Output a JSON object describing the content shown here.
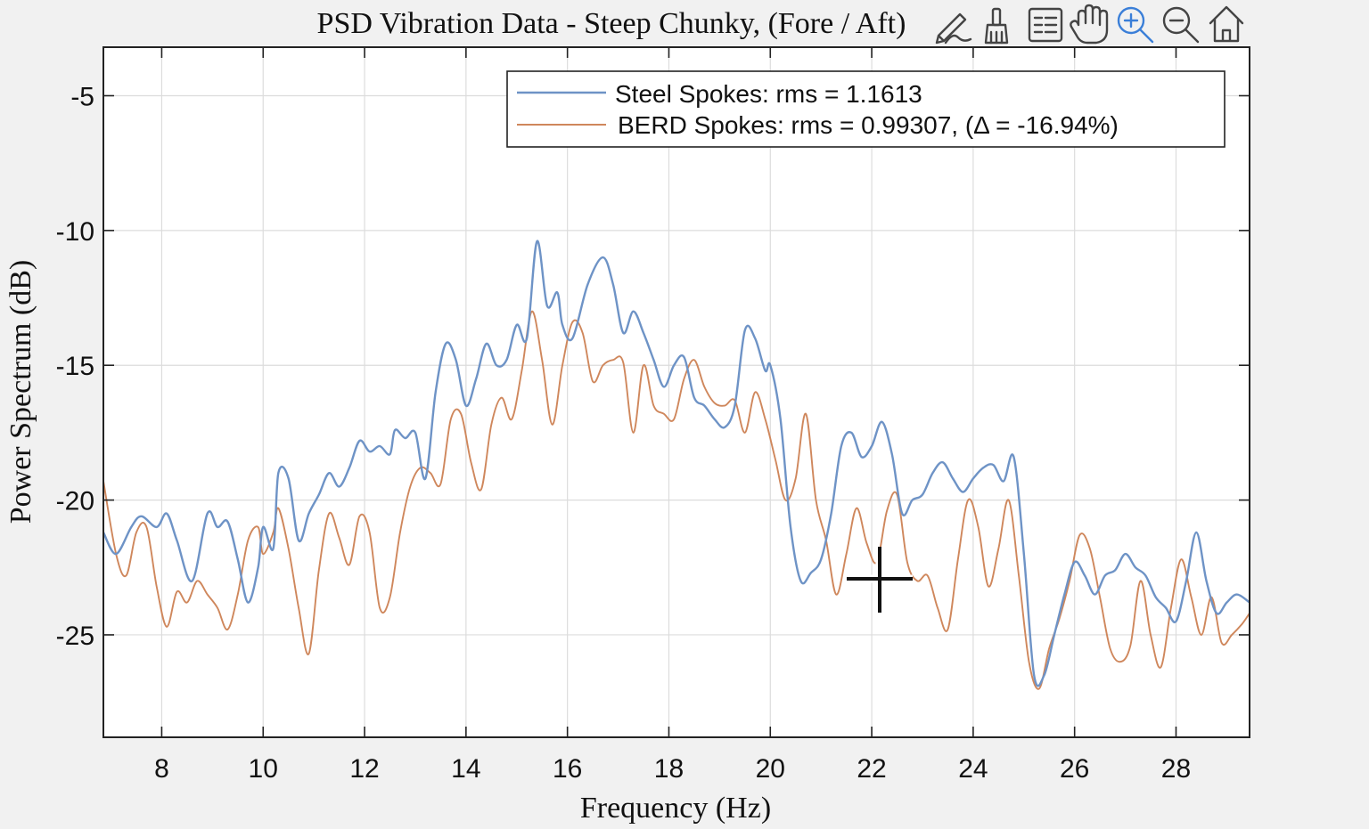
{
  "toolbar": {
    "icons": [
      {
        "name": "edit-plot-icon",
        "active": false
      },
      {
        "name": "brush-icon",
        "active": false
      },
      {
        "name": "legend-icon",
        "active": false
      },
      {
        "name": "pan-hand-icon",
        "active": false
      },
      {
        "name": "zoom-in-icon",
        "active": true
      },
      {
        "name": "zoom-out-icon",
        "active": false
      },
      {
        "name": "home-icon",
        "active": false
      }
    ],
    "active_color": "#3b7fd8"
  },
  "chart_data": {
    "type": "line",
    "title": "PSD Vibration Data - Steep Chunky, (Fore / Aft)",
    "xlabel": "Frequency (Hz)",
    "ylabel": "Power Spectrum (dB)",
    "xlim": [
      6.85,
      29.45
    ],
    "ylim": [
      -28.8,
      -3.2
    ],
    "xticks": [
      8,
      10,
      12,
      14,
      16,
      18,
      20,
      22,
      24,
      26,
      28
    ],
    "yticks": [
      -5,
      -10,
      -15,
      -20,
      -25
    ],
    "grid": true,
    "legend_position": "top-right",
    "series": [
      {
        "name": "Steel Spokes:  rms = 1.1613",
        "color": "#6e93c6",
        "x": [
          6.85,
          7.1,
          7.4,
          7.6,
          7.9,
          8.1,
          8.3,
          8.6,
          8.9,
          9.1,
          9.3,
          9.5,
          9.7,
          9.9,
          10.0,
          10.2,
          10.3,
          10.5,
          10.7,
          10.9,
          11.1,
          11.3,
          11.5,
          11.7,
          11.9,
          12.1,
          12.3,
          12.5,
          12.6,
          12.8,
          13.0,
          13.2,
          13.4,
          13.6,
          13.8,
          14.0,
          14.2,
          14.4,
          14.6,
          14.8,
          15.0,
          15.2,
          15.4,
          15.6,
          15.8,
          15.9,
          16.1,
          16.4,
          16.7,
          16.9,
          17.1,
          17.3,
          17.5,
          17.7,
          17.9,
          18.1,
          18.3,
          18.5,
          18.7,
          18.9,
          19.1,
          19.3,
          19.5,
          19.7,
          19.9,
          20.0,
          20.2,
          20.4,
          20.6,
          20.8,
          21.0,
          21.2,
          21.4,
          21.6,
          21.8,
          22.0,
          22.2,
          22.4,
          22.6,
          22.8,
          23.0,
          23.2,
          23.4,
          23.6,
          23.8,
          24.0,
          24.2,
          24.4,
          24.6,
          24.8,
          25.0,
          25.2,
          25.4,
          25.6,
          25.8,
          26.0,
          26.2,
          26.4,
          26.6,
          26.8,
          27.0,
          27.2,
          27.4,
          27.6,
          27.8,
          28.0,
          28.2,
          28.4,
          28.6,
          28.8,
          29.0,
          29.2,
          29.45
        ],
        "y": [
          -21.2,
          -22.0,
          -21.0,
          -20.6,
          -21.0,
          -20.5,
          -21.5,
          -23.0,
          -20.5,
          -21.0,
          -20.8,
          -22.2,
          -23.8,
          -22.5,
          -21.0,
          -21.8,
          -19.0,
          -19.2,
          -21.5,
          -20.5,
          -19.8,
          -19.0,
          -19.5,
          -18.8,
          -17.8,
          -18.2,
          -18.0,
          -18.3,
          -17.4,
          -17.7,
          -17.5,
          -19.2,
          -16.0,
          -14.2,
          -14.8,
          -16.5,
          -15.5,
          -14.2,
          -15.0,
          -14.8,
          -13.5,
          -14.0,
          -10.4,
          -12.8,
          -12.3,
          -13.5,
          -14.0,
          -12.0,
          -11.0,
          -12.0,
          -13.8,
          -13.0,
          -13.8,
          -14.8,
          -15.8,
          -15.0,
          -14.7,
          -16.2,
          -16.5,
          -17.0,
          -17.3,
          -16.5,
          -13.7,
          -14.0,
          -15.2,
          -15.0,
          -17.0,
          -21.0,
          -23.0,
          -22.7,
          -22.2,
          -20.5,
          -18.0,
          -17.5,
          -18.4,
          -18.0,
          -17.1,
          -18.3,
          -20.5,
          -20.0,
          -19.8,
          -19.0,
          -18.6,
          -19.2,
          -19.7,
          -19.2,
          -18.8,
          -18.7,
          -19.3,
          -18.4,
          -22.0,
          -26.5,
          -26.5,
          -25.0,
          -23.5,
          -22.3,
          -22.8,
          -23.5,
          -22.8,
          -22.6,
          -22.0,
          -22.5,
          -22.8,
          -23.6,
          -24.0,
          -24.5,
          -23.0,
          -21.2,
          -23.0,
          -24.2,
          -23.8,
          -23.5,
          -23.8
        ],
        "line_width": 2.4
      },
      {
        "name": "BERD  Spokes:  rms  =  0.99307,  (Δ  =  -16.94%)",
        "color": "#cf875c",
        "x": [
          6.85,
          7.1,
          7.3,
          7.5,
          7.7,
          7.9,
          8.1,
          8.3,
          8.5,
          8.7,
          8.9,
          9.1,
          9.3,
          9.5,
          9.7,
          9.9,
          10.0,
          10.2,
          10.3,
          10.5,
          10.7,
          10.9,
          11.1,
          11.3,
          11.5,
          11.7,
          11.9,
          12.1,
          12.3,
          12.5,
          12.7,
          12.9,
          13.1,
          13.3,
          13.5,
          13.7,
          13.9,
          14.1,
          14.3,
          14.5,
          14.7,
          14.9,
          15.1,
          15.3,
          15.5,
          15.7,
          15.9,
          16.1,
          16.3,
          16.5,
          16.7,
          16.9,
          17.1,
          17.3,
          17.5,
          17.7,
          17.9,
          18.1,
          18.3,
          18.5,
          18.7,
          18.9,
          19.1,
          19.3,
          19.5,
          19.7,
          19.9,
          20.1,
          20.3,
          20.5,
          20.7,
          20.9,
          21.1,
          21.3,
          21.5,
          21.7,
          21.9,
          22.1,
          22.3,
          22.5,
          22.7,
          22.9,
          23.1,
          23.3,
          23.5,
          23.7,
          23.9,
          24.1,
          24.3,
          24.5,
          24.7,
          24.9,
          25.1,
          25.3,
          25.5,
          25.7,
          25.9,
          26.1,
          26.3,
          26.5,
          26.7,
          26.9,
          27.1,
          27.3,
          27.5,
          27.7,
          27.9,
          28.1,
          28.3,
          28.5,
          28.7,
          28.9,
          29.1,
          29.3,
          29.45
        ],
        "y": [
          -19.3,
          -22.0,
          -22.8,
          -21.2,
          -21.0,
          -23.2,
          -24.7,
          -23.4,
          -23.8,
          -23.0,
          -23.5,
          -24.0,
          -24.8,
          -23.5,
          -21.5,
          -21.0,
          -22.0,
          -21.2,
          -20.3,
          -21.8,
          -24.0,
          -25.7,
          -22.6,
          -20.5,
          -21.4,
          -22.4,
          -20.6,
          -21.2,
          -24.0,
          -23.6,
          -21.2,
          -19.5,
          -18.8,
          -19.0,
          -19.4,
          -17.0,
          -16.8,
          -18.6,
          -19.6,
          -17.2,
          -16.2,
          -17.0,
          -15.2,
          -13.0,
          -14.8,
          -17.2,
          -15.0,
          -13.4,
          -13.8,
          -15.6,
          -15.0,
          -14.8,
          -14.9,
          -17.5,
          -15.0,
          -16.5,
          -16.8,
          -17.0,
          -15.5,
          -14.8,
          -15.8,
          -16.4,
          -16.5,
          -16.3,
          -17.5,
          -16.0,
          -17.0,
          -18.5,
          -20.0,
          -19.2,
          -16.8,
          -20.0,
          -21.5,
          -23.5,
          -22.0,
          -20.3,
          -21.6,
          -22.3,
          -20.4,
          -19.8,
          -22.3,
          -23.0,
          -22.8,
          -24.0,
          -24.8,
          -22.2,
          -20.0,
          -21.0,
          -23.2,
          -21.8,
          -20.0,
          -22.8,
          -26.0,
          -27.0,
          -25.5,
          -24.4,
          -23.0,
          -21.3,
          -21.8,
          -23.6,
          -25.5,
          -26.0,
          -25.4,
          -23.0,
          -25.0,
          -26.2,
          -24.0,
          -22.2,
          -23.6,
          -25.0,
          -23.6,
          -25.3,
          -25.0,
          -24.6,
          -24.2
        ],
        "line_width": 1.9
      }
    ]
  }
}
